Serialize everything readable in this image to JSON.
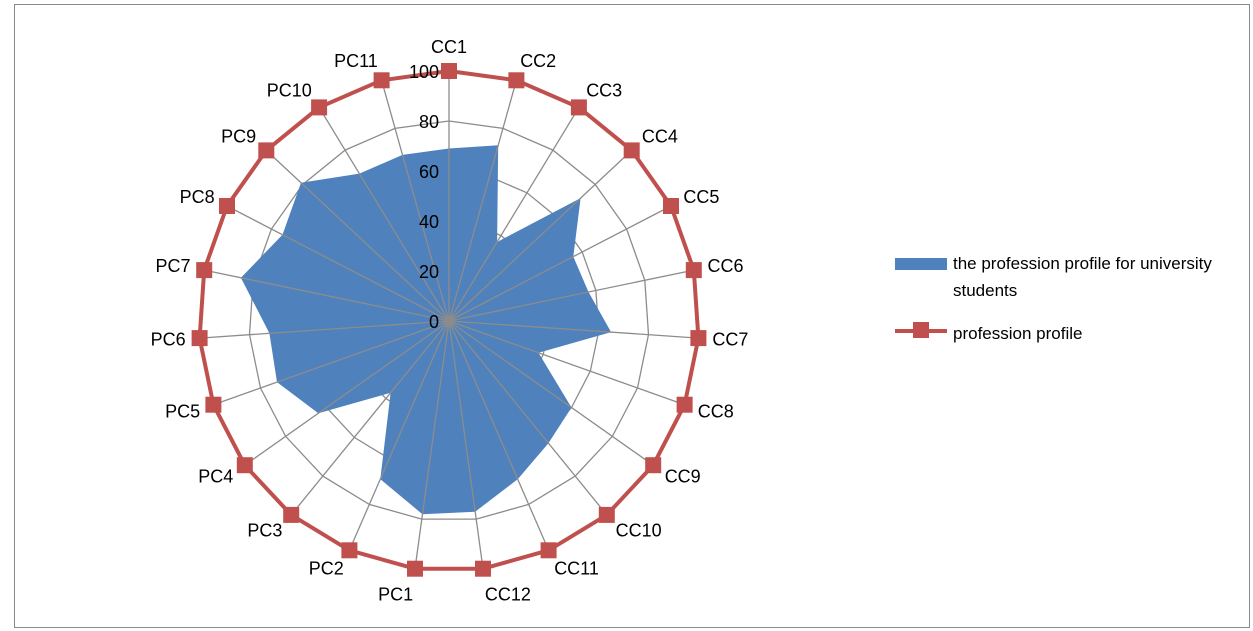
{
  "chart_data": {
    "type": "radar",
    "categories": [
      "CC1",
      "CC2",
      "CC3",
      "CC4",
      "CC5",
      "CC6",
      "CC7",
      "CC8",
      "CC9",
      "CC10",
      "CC11",
      "CC12",
      "PC1",
      "PC2",
      "PC3",
      "PC4",
      "PC5",
      "PC6",
      "PC7",
      "PC8",
      "PC9",
      "PC10",
      "PC11"
    ],
    "ticks": [
      "0",
      "20",
      "40",
      "60",
      "80",
      "100"
    ],
    "rlim": [
      0,
      100
    ],
    "grid": true,
    "legend_position": "right",
    "series": [
      {
        "name": "the profession profile for university students",
        "kind": "area",
        "color": "#4f81bd",
        "values": [
          69,
          73,
          37,
          72,
          56,
          57,
          65,
          38,
          60,
          63,
          69,
          77,
          78,
          69,
          37,
          64,
          73,
          72,
          85,
          75,
          81,
          69,
          69
        ]
      },
      {
        "name": "profession profile",
        "kind": "line-marker",
        "color": "#c0504d",
        "values": [
          100,
          100,
          100,
          100,
          100,
          100,
          100,
          100,
          100,
          100,
          100,
          100,
          100,
          100,
          100,
          100,
          100,
          100,
          100,
          100,
          100,
          100,
          100
        ]
      }
    ]
  },
  "legend": {
    "series1_label": "the profession profile for university students",
    "series2_label": "profession profile"
  }
}
